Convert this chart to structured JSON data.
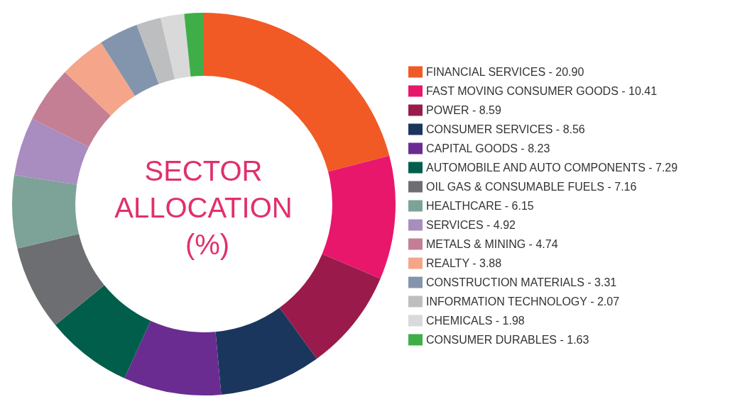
{
  "chart_data": {
    "type": "donut",
    "title": "SECTOR ALLOCATION (%)",
    "categories": [
      "FINANCIAL SERVICES",
      "FAST MOVING CONSUMER GOODS",
      "POWER",
      "CONSUMER SERVICES",
      "CAPITAL GOODS",
      "AUTOMOBILE AND AUTO COMPONENTS",
      "OIL GAS & CONSUMABLE FUELS",
      "HEALTHCARE",
      "SERVICES",
      "METALS & MINING",
      "REALTY",
      "CONSTRUCTION MATERIALS",
      "INFORMATION TECHNOLOGY",
      "CHEMICALS",
      "CONSUMER DURABLES"
    ],
    "values": [
      20.9,
      10.41,
      8.59,
      8.56,
      8.23,
      7.29,
      7.16,
      6.15,
      4.92,
      4.74,
      3.88,
      3.31,
      2.07,
      1.98,
      1.63
    ],
    "value_labels": [
      "20.90",
      "10.41",
      "8.59",
      "8.56",
      "8.23",
      "7.29",
      "7.16",
      "6.15",
      "4.92",
      "4.74",
      "3.88",
      "3.31",
      "2.07",
      "1.98",
      "1.63"
    ],
    "colors": [
      "#f15a24",
      "#e8176b",
      "#9a1b4b",
      "#1b365d",
      "#6a2c91",
      "#005e4b",
      "#6d6e71",
      "#7da398",
      "#a98cc0",
      "#c47f95",
      "#f5a58a",
      "#8394ad",
      "#bdbebf",
      "#d9d9d9",
      "#3fae49"
    ],
    "legend": "right"
  }
}
